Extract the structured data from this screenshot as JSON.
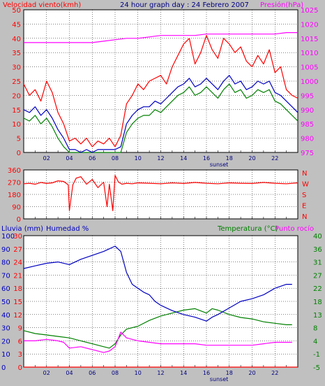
{
  "colors": {
    "background": "#c0c0c0",
    "plot_background": "#ffffff",
    "wind": "#ff0000",
    "gust_dark": "#008000",
    "wind_avg": "#0000c0",
    "pressure": "#ff00ff",
    "direction": "#ff0000",
    "humidity": "#0000c0",
    "temperature": "#008000",
    "dewpoint": "#ff00ff",
    "rain": "#ff0000",
    "grid": "#000000",
    "axis_text_blue": "#0000c0",
    "axis_text_red": "#ff0000",
    "axis_text_green": "#008000",
    "axis_text_magenta": "#ff00ff"
  },
  "chart_data": [
    {
      "type": "line",
      "title": "24 hour graph day : 24 Febrero 2007",
      "left_label": "Velocidad viento(kmh)",
      "right_label": "Presión(hPa)",
      "x_ticks": [
        "02",
        "04",
        "06",
        "08",
        "10",
        "12",
        "14",
        "16",
        "18",
        "20",
        "22"
      ],
      "sunset_label": "sunset",
      "y_left_ticks": [
        "0",
        "5",
        "10",
        "15",
        "20",
        "25",
        "30",
        "35",
        "40",
        "45",
        "50"
      ],
      "ylim_left": [
        0,
        50
      ],
      "y_right_ticks": [
        "975",
        "980",
        "985",
        "990",
        "995",
        "1000",
        "1005",
        "1010",
        "1015",
        "1020",
        "1025"
      ],
      "ylim_right": [
        975,
        1025
      ],
      "xlim": [
        0,
        24
      ],
      "series": [
        {
          "key": "gust",
          "x": [
            0,
            0.5,
            1,
            1.5,
            2,
            2.5,
            3,
            3.5,
            4,
            4.5,
            5,
            5.5,
            6,
            6.5,
            7,
            7.5,
            8,
            8.5,
            9,
            9.5,
            10,
            10.5,
            11,
            11.5,
            12,
            12.5,
            13,
            13.5,
            14,
            14.5,
            15,
            15.5,
            16,
            16.5,
            17,
            17.5,
            18,
            18.5,
            19,
            19.5,
            20,
            20.5,
            21,
            21.5,
            22,
            22.5,
            23,
            23.5,
            24
          ],
          "values": [
            24,
            20,
            22,
            18,
            25,
            21,
            14,
            10,
            4,
            5,
            3,
            5,
            2,
            4,
            3,
            5,
            2,
            6,
            17,
            20,
            24,
            22,
            25,
            26,
            27,
            24,
            30,
            34,
            38,
            40,
            31,
            35,
            41,
            36,
            33,
            40,
            38,
            35,
            37,
            32,
            30,
            34,
            31,
            36,
            28,
            30,
            22,
            20,
            19
          ]
        },
        {
          "key": "average",
          "x": [
            0,
            0.5,
            1,
            1.5,
            2,
            2.5,
            3,
            3.5,
            4,
            4.5,
            5,
            5.5,
            6,
            6.5,
            7,
            7.5,
            8,
            8.5,
            9,
            9.5,
            10,
            10.5,
            11,
            11.5,
            12,
            12.5,
            13,
            13.5,
            14,
            14.5,
            15,
            15.5,
            16,
            16.5,
            17,
            17.5,
            18,
            18.5,
            19,
            19.5,
            20,
            20.5,
            21,
            21.5,
            22,
            22.5,
            23,
            23.5,
            24
          ],
          "values": [
            15,
            14,
            16,
            13,
            15,
            12,
            8,
            5,
            1,
            1,
            0,
            1,
            0,
            1,
            1,
            1,
            1,
            2,
            10,
            13,
            15,
            16,
            16,
            18,
            17,
            19,
            21,
            23,
            24,
            26,
            23,
            24,
            26,
            24,
            22,
            25,
            27,
            24,
            25,
            22,
            23,
            25,
            24,
            25,
            21,
            20,
            18,
            16,
            14
          ]
        },
        {
          "key": "pressure",
          "x": [
            0,
            1,
            2,
            3,
            4,
            5,
            6,
            7,
            8,
            9,
            10,
            11,
            12,
            13,
            14,
            15,
            16,
            17,
            18,
            19,
            20,
            21,
            22,
            23,
            24
          ],
          "values": [
            1013.5,
            1013.5,
            1013.5,
            1013.5,
            1013.5,
            1013.5,
            1013.5,
            1014,
            1014.5,
            1015,
            1015,
            1015.5,
            1016,
            1016,
            1016,
            1016,
            1016.5,
            1016.5,
            1016.5,
            1016.5,
            1016.5,
            1016.5,
            1016.5,
            1017,
            1017
          ]
        }
      ]
    },
    {
      "type": "line",
      "left_label": "",
      "y_left_ticks": [
        "0",
        "90",
        "180",
        "270",
        "360"
      ],
      "ylim_left": [
        0,
        360
      ],
      "y_right_ticks": [
        "N",
        "W",
        "S",
        "E",
        "N"
      ],
      "y_right_ticks_top_to_bottom": [
        "N",
        "W",
        "S",
        "E",
        "N"
      ],
      "xlim": [
        0,
        24
      ],
      "series": [
        {
          "key": "direction",
          "x": [
            0,
            0.5,
            1,
            1.5,
            2,
            2.5,
            3,
            3.5,
            3.9,
            4,
            4.3,
            4.6,
            5,
            5.5,
            6,
            6.5,
            7,
            7.3,
            7.5,
            7.8,
            8,
            8.3,
            8.6,
            9,
            9.5,
            10,
            11,
            12,
            13,
            14,
            15,
            16,
            17,
            18,
            19,
            20,
            21,
            22,
            23,
            24
          ],
          "values": [
            258,
            262,
            255,
            268,
            260,
            265,
            280,
            275,
            250,
            60,
            250,
            300,
            310,
            255,
            290,
            230,
            270,
            90,
            255,
            60,
            320,
            270,
            255,
            262,
            258,
            265,
            262,
            258,
            265,
            260,
            268,
            262,
            258,
            265,
            262,
            260,
            268,
            262,
            258,
            265
          ]
        }
      ]
    },
    {
      "type": "line",
      "left_label": "Lluvia (mm)",
      "left2_label": "Humedad %",
      "right_label": "Temperatura (°C)",
      "right2_label": "Punto rocío",
      "x_ticks": [
        "02",
        "04",
        "06",
        "08",
        "10",
        "12",
        "14",
        "16",
        "18",
        "20",
        "22"
      ],
      "sunset_label": "sunset",
      "y_rain_ticks": [
        "0",
        "3",
        "6",
        "9",
        "12",
        "15",
        "18",
        "21",
        "24",
        "27",
        "30"
      ],
      "ylim_rain": [
        0,
        30
      ],
      "y_humidity_ticks": [
        "0",
        "10",
        "20",
        "30",
        "40",
        "50",
        "60",
        "70",
        "80",
        "90",
        "100"
      ],
      "ylim_humidity": [
        0,
        100
      ],
      "y_temp_ticks": [
        "-5",
        "-1",
        "4",
        "8",
        "13",
        "18",
        "22",
        "27",
        "31",
        "36",
        "40"
      ],
      "ylim_temp": [
        -5,
        40
      ],
      "xlim": [
        0,
        24
      ],
      "series": [
        {
          "key": "humidity",
          "x": [
            0,
            1,
            2,
            3,
            4,
            5,
            6,
            7,
            7.5,
            8,
            8.5,
            9,
            9.5,
            10,
            10.5,
            11,
            11.5,
            12,
            12.5,
            13,
            14,
            15,
            16,
            16.5,
            17,
            18,
            19,
            20,
            21,
            22,
            23,
            23.5
          ],
          "values": [
            75,
            77,
            79,
            80,
            78,
            82,
            85,
            88,
            90,
            92,
            88,
            72,
            63,
            60,
            57,
            55,
            50,
            47,
            45,
            43,
            40,
            38,
            35,
            38,
            40,
            45,
            50,
            52,
            55,
            60,
            63,
            63
          ]
        },
        {
          "key": "temperature",
          "x": [
            0,
            1,
            2,
            3,
            4,
            5,
            6,
            7,
            7.5,
            8,
            8.5,
            9,
            10,
            11,
            12,
            13,
            14,
            15,
            16,
            16.5,
            17,
            18,
            19,
            20,
            21,
            22,
            23,
            23.5
          ],
          "values": [
            7.5,
            6.5,
            6,
            5.5,
            5,
            4,
            3,
            2,
            1.5,
            3,
            6,
            8,
            9,
            11,
            12.5,
            13.5,
            14.5,
            15,
            13.5,
            15,
            14.5,
            13,
            12,
            11.5,
            10.5,
            10,
            9.5,
            9.5
          ]
        },
        {
          "key": "dewpoint",
          "x": [
            0,
            1,
            2,
            3,
            3.5,
            4,
            5,
            6,
            7,
            7.5,
            8,
            8.5,
            9,
            10,
            11,
            12,
            13,
            14,
            15,
            16,
            17,
            18,
            19,
            20,
            21,
            22,
            23,
            23.5
          ],
          "values": [
            4,
            4,
            4.5,
            4,
            3.5,
            1.5,
            2,
            1,
            0,
            0.5,
            2,
            7,
            5,
            4,
            3.5,
            3,
            3,
            3,
            3,
            2.5,
            2.5,
            2.5,
            2.5,
            2.5,
            3,
            3.5,
            3.5,
            3.5
          ]
        },
        {
          "key": "rain",
          "x": [
            0,
            24
          ],
          "values": [
            0,
            0
          ]
        }
      ]
    }
  ]
}
